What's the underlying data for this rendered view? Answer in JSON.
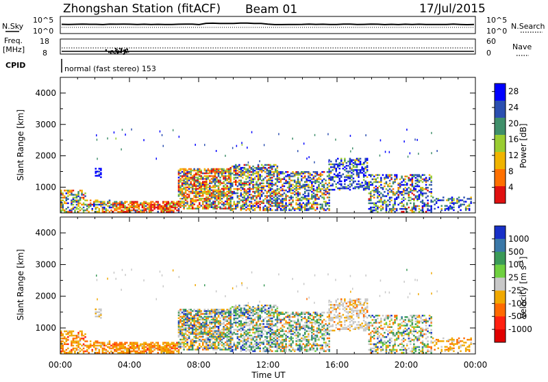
{
  "header": {
    "station": "Zhongshan Station (fitACF)",
    "beam": "Beam 01",
    "date": "17/Jul/2015"
  },
  "summary_panels": {
    "nsky_label": "N.Sky",
    "nsky_tick_top": "10^5",
    "nsky_tick_bottom": "10^0",
    "nsearch_label": "N.Search",
    "nsearch_tick_top": "10^5",
    "nsearch_tick_bottom": "10^0",
    "freq_label": "Freq.",
    "freq_unit": "[MHz]",
    "freq_tick_top": "18",
    "freq_tick_bottom": "8",
    "nave_label": "Nave",
    "nave_tick_top": "60",
    "nave_tick_bottom": "0",
    "cpid_label": "CPID",
    "cpid_text": "normal (fast stereo) 153"
  },
  "chart_data": [
    {
      "type": "heatmap",
      "name": "power-panel",
      "ylabel": "Slant Range [km]",
      "x_ticks": [
        "00:00",
        "04:00",
        "08:00",
        "12:00",
        "16:00",
        "20:00",
        "00:00"
      ],
      "y_ticks": [
        1000,
        2000,
        3000,
        4000
      ],
      "ylim": [
        180,
        4500
      ],
      "xlim_hours": [
        0,
        24
      ],
      "colorbar_label": "Power [dB]",
      "colorbar_ticks": [
        "4",
        "8",
        "12",
        "16",
        "20",
        "24",
        "28"
      ],
      "colorbar_colors": [
        "#0000ff",
        "#2b4fb0",
        "#3f8f6a",
        "#9acd32",
        "#f0b400",
        "#ff7000",
        "#e01010"
      ]
    },
    {
      "type": "heatmap",
      "name": "velocity-panel",
      "xlabel": "Time UT",
      "ylabel": "Slant Range [km]",
      "x_ticks": [
        "00:00",
        "04:00",
        "08:00",
        "12:00",
        "16:00",
        "20:00",
        "00:00"
      ],
      "y_ticks": [
        1000,
        2000,
        3000,
        4000
      ],
      "ylim": [
        180,
        4500
      ],
      "xlim_hours": [
        0,
        24
      ],
      "colorbar_label": "Velocity [m s",
      "colorbar_label_sup": "-1",
      "colorbar_label_close": "]",
      "colorbar_ticks": [
        "1000",
        "500",
        "100",
        "25",
        "-25",
        "-100",
        "-500",
        "-1000"
      ],
      "colorbar_colors": [
        "#1830c8",
        "#3a78a8",
        "#3a9a58",
        "#6fd040",
        "#c8c8c8",
        "#f0a800",
        "#ff6a00",
        "#ff2010",
        "#e00000"
      ]
    }
  ]
}
